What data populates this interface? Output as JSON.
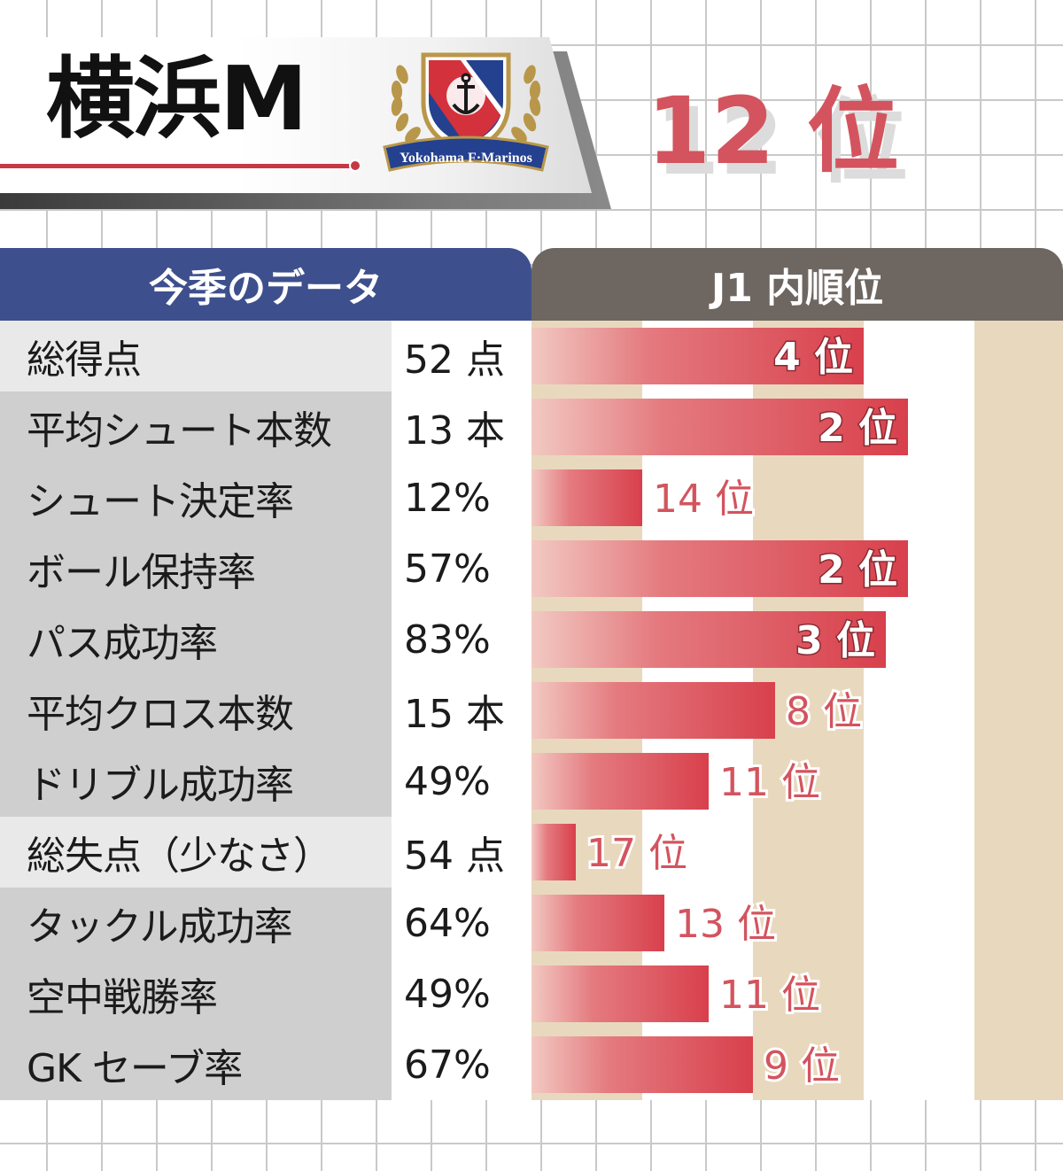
{
  "header": {
    "team": "横浜M",
    "logo_text": "Yokohama F·Marinos",
    "season_rank": "12 位"
  },
  "table": {
    "left_header": "今季のデータ",
    "right_header": "J1 内順位",
    "rows": [
      {
        "label": "総得点",
        "value": "52 点",
        "rank_label": "4 位"
      },
      {
        "label": "平均シュート本数",
        "value": "13 本",
        "rank_label": "2 位"
      },
      {
        "label": "シュート決定率",
        "value": "12%",
        "rank_label": "14 位"
      },
      {
        "label": "ボール保持率",
        "value": "57%",
        "rank_label": "2 位"
      },
      {
        "label": "パス成功率",
        "value": "83%",
        "rank_label": "3 位"
      },
      {
        "label": "平均クロス本数",
        "value": "15 本",
        "rank_label": "8 位"
      },
      {
        "label": "ドリブル成功率",
        "value": "49%",
        "rank_label": "11 位"
      },
      {
        "label": "総失点（少なさ）",
        "value": "54 点",
        "rank_label": "17 位"
      },
      {
        "label": "タックル成功率",
        "value": "64%",
        "rank_label": "13 位"
      },
      {
        "label": "空中戦勝率",
        "value": "49%",
        "rank_label": "11 位"
      },
      {
        "label": "GK セーブ率",
        "value": "67%",
        "rank_label": "9 位"
      }
    ]
  },
  "chart_data": {
    "type": "bar",
    "orientation": "horizontal",
    "categories": [
      "総得点",
      "平均シュート本数",
      "シュート決定率",
      "ボール保持率",
      "パス成功率",
      "平均クロス本数",
      "ドリブル成功率",
      "総失点（少なさ）",
      "タックル成功率",
      "空中戦勝率",
      "GK セーブ率"
    ],
    "values": [
      4,
      2,
      14,
      2,
      3,
      8,
      11,
      17,
      13,
      11,
      9
    ],
    "data_labels": [
      "4 位",
      "2 位",
      "14 位",
      "2 位",
      "3 位",
      "8 位",
      "11 位",
      "17 位",
      "13 位",
      "11 位",
      "9 位"
    ],
    "title": "",
    "xlabel": "",
    "ylabel": "",
    "rank_range": [
      1,
      18
    ],
    "highlight_top": 4,
    "colors": {
      "bar": "#d8404c",
      "bar_fade": "#f2c9c2",
      "label_top": "#ffffff",
      "label_other": "#d3545e",
      "stripe": "#e8d9be"
    }
  }
}
